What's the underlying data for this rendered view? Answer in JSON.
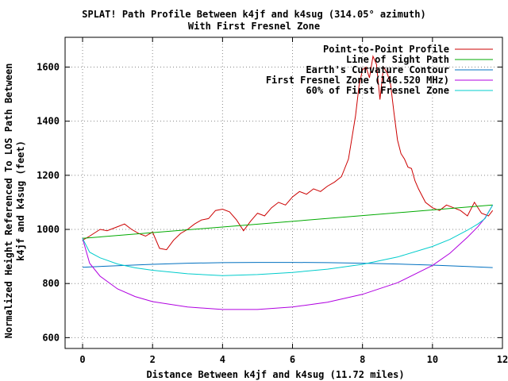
{
  "chart_data": {
    "type": "line",
    "title": [
      "SPLAT! Path Profile Between k4jf and k4sug (314.05° azimuth)",
      "With First Fresnel Zone"
    ],
    "xlabel": "Distance Between k4jf and k4sug (11.72 miles)",
    "ylabel": [
      "Normalized Height Referenced To LOS Path Between",
      "k4jf and k4sug (feet)"
    ],
    "xlim": [
      -0.5,
      12
    ],
    "ylim": [
      560,
      1710
    ],
    "xticks": [
      0,
      2,
      4,
      6,
      8,
      10,
      12
    ],
    "yticks": [
      600,
      800,
      1000,
      1200,
      1400,
      1600
    ],
    "grid": true,
    "legend_position": "top-right",
    "series": [
      {
        "name": "Point-to-Point Profile",
        "color": "#cc0000",
        "x": [
          0,
          0.2,
          0.5,
          0.7,
          1.0,
          1.2,
          1.4,
          1.6,
          1.8,
          2.0,
          2.2,
          2.4,
          2.6,
          2.8,
          3.0,
          3.2,
          3.4,
          3.6,
          3.8,
          4.0,
          4.2,
          4.4,
          4.6,
          4.8,
          5.0,
          5.2,
          5.4,
          5.6,
          5.8,
          6.0,
          6.2,
          6.4,
          6.6,
          6.8,
          7.0,
          7.2,
          7.4,
          7.6,
          7.7,
          7.8,
          7.9,
          8.0,
          8.1,
          8.2,
          8.3,
          8.4,
          8.5,
          8.6,
          8.7,
          8.8,
          8.9,
          9.0,
          9.1,
          9.2,
          9.3,
          9.4,
          9.5,
          9.6,
          9.8,
          10.0,
          10.2,
          10.4,
          10.6,
          10.8,
          11.0,
          11.2,
          11.4,
          11.6,
          11.72
        ],
        "y": [
          960,
          975,
          1000,
          995,
          1010,
          1020,
          1000,
          985,
          975,
          990,
          930,
          925,
          960,
          985,
          1000,
          1020,
          1035,
          1040,
          1070,
          1075,
          1065,
          1035,
          995,
          1030,
          1060,
          1050,
          1080,
          1100,
          1090,
          1120,
          1140,
          1130,
          1150,
          1140,
          1160,
          1175,
          1195,
          1260,
          1340,
          1420,
          1530,
          1590,
          1600,
          1560,
          1640,
          1610,
          1480,
          1600,
          1580,
          1540,
          1430,
          1330,
          1280,
          1260,
          1230,
          1225,
          1180,
          1150,
          1100,
          1080,
          1070,
          1090,
          1080,
          1070,
          1050,
          1100,
          1060,
          1050,
          1070
        ]
      },
      {
        "name": "Line of Sight Path",
        "color": "#00aa00",
        "x": [
          0,
          11.72
        ],
        "y": [
          967,
          1090
        ]
      },
      {
        "name": "Earth's Curvature Contour",
        "color": "#0070c0",
        "x": [
          0,
          1,
          2,
          3,
          4,
          5,
          6,
          7,
          8,
          9,
          10,
          11,
          11.72
        ],
        "y": [
          860,
          866,
          871,
          875,
          877,
          878,
          878,
          877,
          875,
          872,
          868,
          863,
          859
        ]
      },
      {
        "name": "First Fresnel Zone (146.520 MHz)",
        "color": "#b000e0",
        "x": [
          0,
          0.2,
          0.5,
          1.0,
          1.5,
          2.0,
          3.0,
          4.0,
          5.0,
          6.0,
          7.0,
          8.0,
          9.0,
          10.0,
          10.5,
          11.0,
          11.3,
          11.5,
          11.72
        ],
        "y": [
          967,
          875,
          827,
          780,
          752,
          733,
          713,
          704,
          704,
          713,
          731,
          760,
          803,
          867,
          912,
          971,
          1010,
          1042,
          1090
        ]
      },
      {
        "name": "60% of First Fresnel Zone",
        "color": "#00cccc",
        "x": [
          0,
          0.2,
          0.5,
          1.0,
          1.5,
          2.0,
          3.0,
          4.0,
          5.0,
          6.0,
          7.0,
          8.0,
          9.0,
          10.0,
          10.5,
          11.0,
          11.3,
          11.5,
          11.72
        ],
        "y": [
          967,
          916,
          895,
          872,
          858,
          849,
          836,
          829,
          833,
          841,
          853,
          871,
          898,
          937,
          963,
          997,
          1020,
          1040,
          1090
        ]
      }
    ]
  }
}
